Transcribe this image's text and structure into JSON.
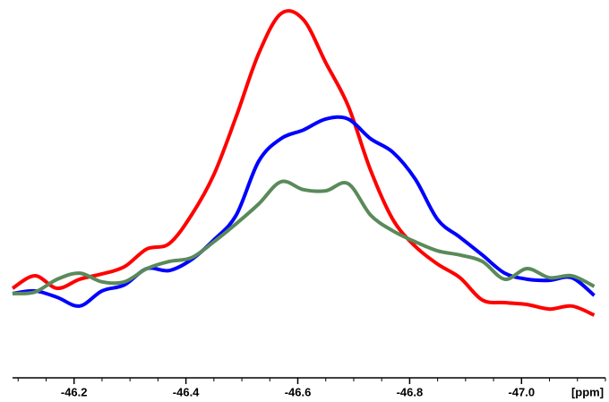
{
  "chart_data": {
    "type": "line",
    "xlabel": "[ppm]",
    "x": [
      -46.09,
      -46.13,
      -46.17,
      -46.21,
      -46.25,
      -46.29,
      -46.33,
      -46.37,
      -46.41,
      -46.45,
      -46.49,
      -46.53,
      -46.57,
      -46.61,
      -46.65,
      -46.69,
      -46.73,
      -46.77,
      -46.81,
      -46.85,
      -46.89,
      -46.93,
      -46.97,
      -47.01,
      -47.05,
      -47.09,
      -47.13
    ],
    "series": [
      {
        "color": "#ff0000",
        "values": [
          23.7,
          27.0,
          23.7,
          26.1,
          27.5,
          29.4,
          34.1,
          35.5,
          43.1,
          53.8,
          69.2,
          85.8,
          96.4,
          94.8,
          83.4,
          72.0,
          55.0,
          41.9,
          34.8,
          30.1,
          26.5,
          20.6,
          19.9,
          19.4,
          18.2,
          19.0,
          16.6
        ]
      },
      {
        "color": "#0000ff",
        "values": [
          22.3,
          23.0,
          21.3,
          19.0,
          23.0,
          24.6,
          28.9,
          28.4,
          31.3,
          36.5,
          43.1,
          57.3,
          63.3,
          65.6,
          68.5,
          68.5,
          63.3,
          59.7,
          52.6,
          41.9,
          37.2,
          32.5,
          27.7,
          26.1,
          25.8,
          26.5,
          21.8
        ]
      },
      {
        "color": "#5a8a5a",
        "values": [
          22.3,
          22.7,
          26.1,
          27.7,
          25.4,
          25.4,
          28.9,
          30.8,
          31.8,
          36.0,
          40.8,
          46.0,
          51.9,
          49.8,
          49.5,
          51.4,
          43.1,
          38.9,
          36.0,
          33.6,
          32.5,
          30.8,
          26.1,
          28.9,
          26.5,
          27.0,
          24.2
        ]
      }
    ],
    "xlim": [
      -46.09,
      -47.15
    ],
    "ylim": [
      0,
      100
    ],
    "xticks": [
      -46.2,
      -46.4,
      -46.6,
      -46.8,
      {
        "value": -47,
        "label": "-47.0"
      }
    ],
    "xminorticks": [
      -46.1,
      -46.15,
      -46.25,
      -46.3,
      -46.35,
      -46.45,
      -46.5,
      -46.55,
      -46.65,
      -46.7,
      -46.75,
      -46.85,
      -46.9,
      -46.95,
      -47.05,
      -47.1,
      -47.15
    ]
  }
}
